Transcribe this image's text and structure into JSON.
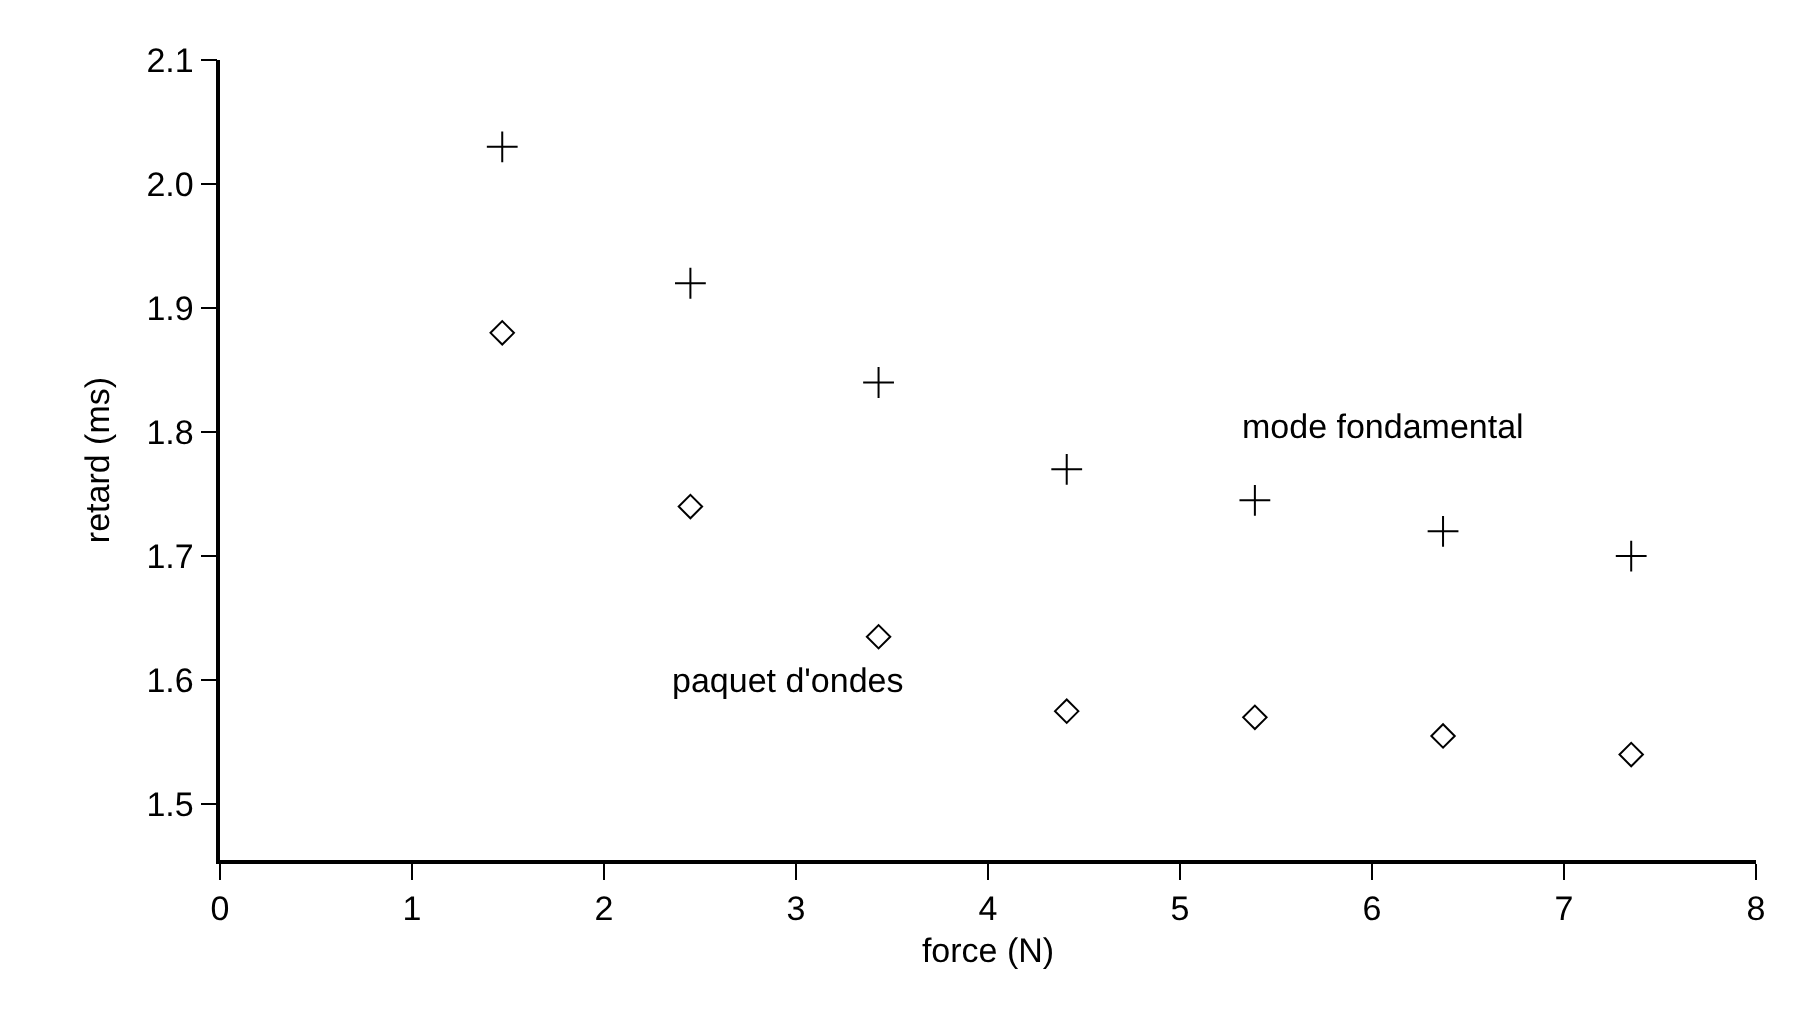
{
  "chart_data": {
    "type": "scatter",
    "xlabel": "force (N)",
    "ylabel": "retard (ms)",
    "xlim": [
      0,
      8
    ],
    "xticks": [
      0,
      1,
      2,
      3,
      4,
      5,
      6,
      7,
      8
    ],
    "ylim": [
      1.455,
      2.1
    ],
    "yticks": [
      1.5,
      1.6,
      1.7,
      1.8,
      1.9,
      {
        "value": 2,
        "label": "2.0"
      },
      2.1
    ],
    "x": [
      1.47,
      2.45,
      3.43,
      4.41,
      5.39,
      6.37,
      7.35
    ],
    "series": [
      {
        "name": "mode fondamental",
        "color": "#000000",
        "marker": "cross",
        "values": [
          2.03,
          1.92,
          1.84,
          1.77,
          1.745,
          1.72,
          1.7
        ]
      },
      {
        "name": "paquet d'ondes",
        "color": "#000000",
        "marker": "diamond",
        "values": [
          1.88,
          1.74,
          1.635,
          1.575,
          1.57,
          1.555,
          1.54
        ]
      }
    ]
  }
}
